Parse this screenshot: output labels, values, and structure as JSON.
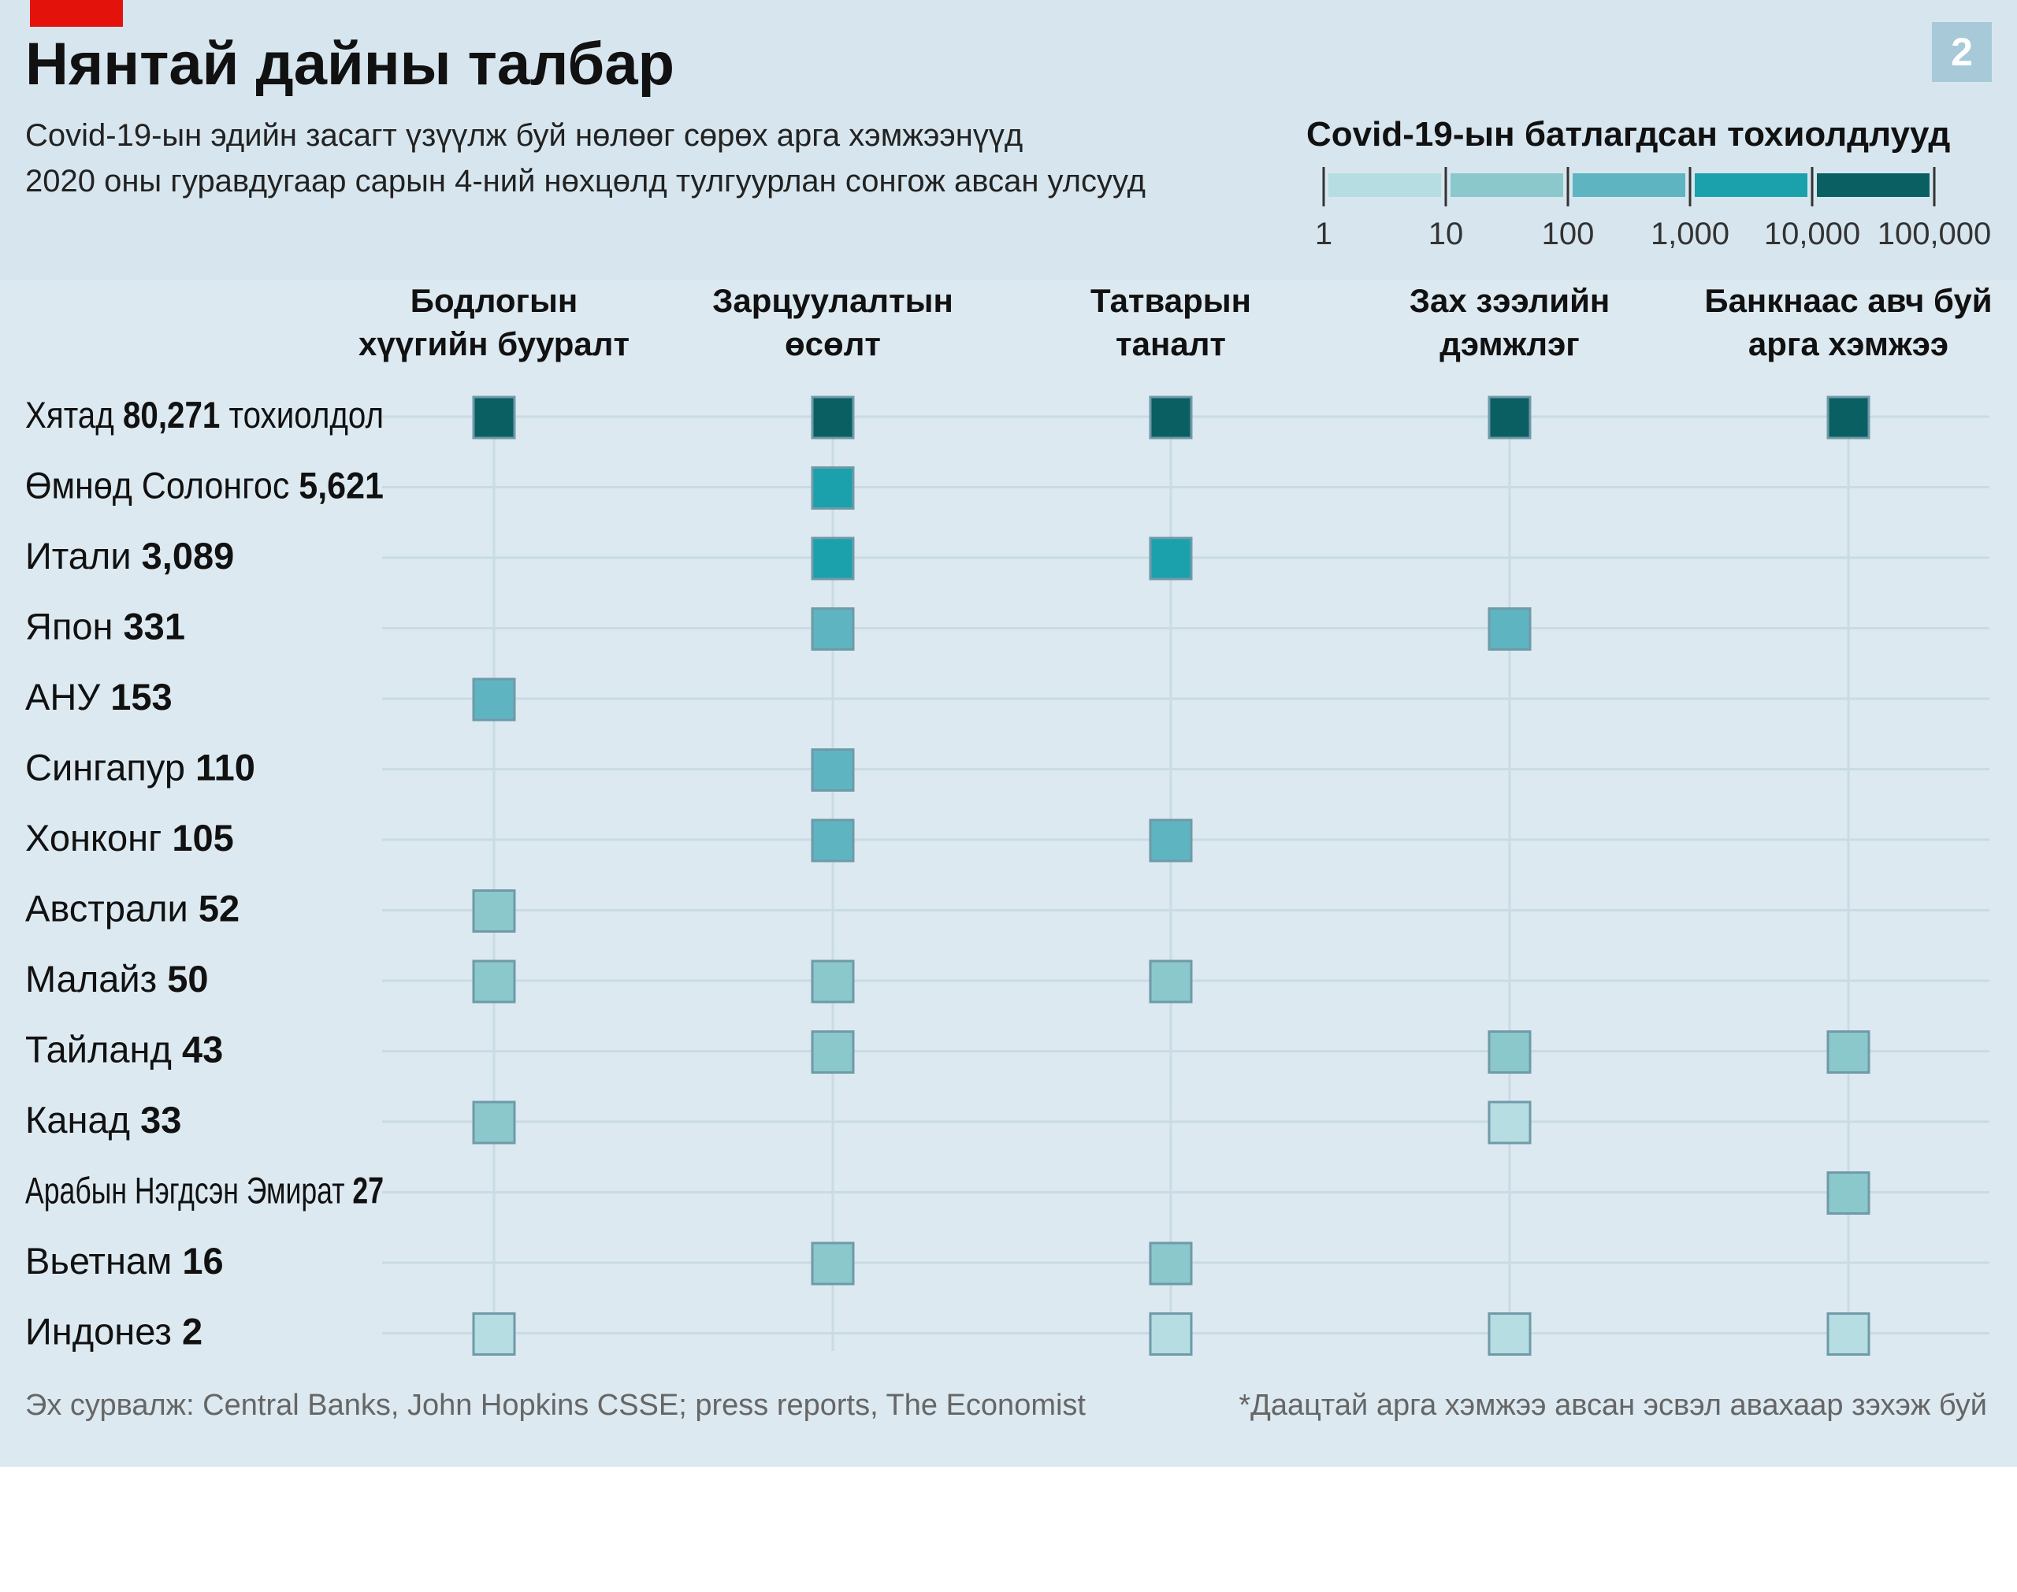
{
  "title": "Нянтай дайны талбар",
  "subtitle_lines": [
    "Covid-19-ын эдийн засагт үзүүлж буй нөлөөг сөрөх арга хэмжээнүүд",
    "2020 оны гуравдугаар сарын 4-ний нөхцөлд тулгуурлан сонгож авсан улсууд"
  ],
  "page_number": "2",
  "source": "Эх сурвалж: Central Banks, John Hopkins CSSE; press reports, The Economist",
  "note": "*Даацтай арга хэмжээ авсан эсвэл авахаар зэхэж буй",
  "colors": {
    "panel_bg": "#d7e6ee",
    "gridline": "#c9dbe4",
    "scale": [
      "#b5dde2",
      "#8bc8cc",
      "#5fb4c2",
      "#1ba1ab",
      "#0a5f63"
    ],
    "marker_border": "#6f9aa8"
  },
  "chart_data": {
    "type": "matrix",
    "legend": {
      "title": "Covid-19-ын батлагдсан тохиолдлууд",
      "scale": "log",
      "tick_labels": [
        "1",
        "10",
        "100",
        "1,000",
        "10,000",
        "100,000"
      ],
      "bins": [
        [
          1,
          10
        ],
        [
          10,
          100
        ],
        [
          100,
          1000
        ],
        [
          1000,
          10000
        ],
        [
          10000,
          100000
        ]
      ]
    },
    "columns": [
      {
        "line1": "Бодлогын",
        "line2": "хүүгийн бууралт"
      },
      {
        "line1": "Зарцуулалтын",
        "line2": "өсөлт"
      },
      {
        "line1": "Татварын",
        "line2": "таналт"
      },
      {
        "line1": "Зах зээлийн",
        "line2": "дэмжлэг"
      },
      {
        "line1": "Банкнаас авч буй",
        "line2": "арга хэмжээ"
      }
    ],
    "rows": [
      {
        "country": "Хятад",
        "cases_label": "80,271",
        "suffix": "тохиолдол",
        "cases": 80271,
        "measures": [
          1,
          1,
          1,
          1,
          1
        ]
      },
      {
        "country": "Өмнөд Солонгос",
        "cases_label": "5,621",
        "suffix": "",
        "cases": 5621,
        "measures": [
          0,
          1,
          0,
          0,
          0
        ]
      },
      {
        "country": "Итали",
        "cases_label": "3,089",
        "suffix": "",
        "cases": 3089,
        "measures": [
          0,
          1,
          1,
          0,
          0
        ]
      },
      {
        "country": "Япон",
        "cases_label": "331",
        "suffix": "",
        "cases": 331,
        "measures": [
          0,
          1,
          0,
          1,
          0
        ]
      },
      {
        "country": "АНУ",
        "cases_label": "153",
        "suffix": "",
        "cases": 153,
        "measures": [
          1,
          0,
          0,
          0,
          0
        ]
      },
      {
        "country": "Сингапур",
        "cases_label": "110",
        "suffix": "",
        "cases": 110,
        "measures": [
          0,
          1,
          0,
          0,
          0
        ]
      },
      {
        "country": "Хонконг",
        "cases_label": "105",
        "suffix": "",
        "cases": 105,
        "measures": [
          0,
          1,
          1,
          0,
          0
        ]
      },
      {
        "country": "Австрали",
        "cases_label": "52",
        "suffix": "",
        "cases": 52,
        "measures": [
          1,
          0,
          0,
          0,
          0
        ]
      },
      {
        "country": "Малайз",
        "cases_label": "50",
        "suffix": "",
        "cases": 50,
        "measures": [
          1,
          1,
          1,
          0,
          0
        ]
      },
      {
        "country": "Тайланд",
        "cases_label": "43",
        "suffix": "",
        "cases": 43,
        "measures": [
          0,
          1,
          0,
          1,
          1
        ]
      },
      {
        "country": "Канад",
        "cases_label": "33",
        "suffix": "",
        "cases": 33,
        "measures": [
          1,
          0,
          0,
          1,
          0
        ]
      },
      {
        "country": "Арабын Нэгдсэн Эмират",
        "cases_label": "27",
        "suffix": "",
        "cases": 27,
        "measures": [
          0,
          0,
          0,
          0,
          1
        ]
      },
      {
        "country": "Вьетнам",
        "cases_label": "16",
        "suffix": "",
        "cases": 16,
        "measures": [
          0,
          1,
          1,
          0,
          0
        ]
      },
      {
        "country": "Индонез",
        "cases_label": "2",
        "suffix": "",
        "cases": 2,
        "measures": [
          1,
          0,
          1,
          1,
          1
        ]
      }
    ],
    "marker_overrides": [
      {
        "row": 10,
        "column": 3,
        "bin": 0
      },
      {
        "row": 3,
        "column": 3,
        "bin": 2
      }
    ],
    "grid": true
  }
}
